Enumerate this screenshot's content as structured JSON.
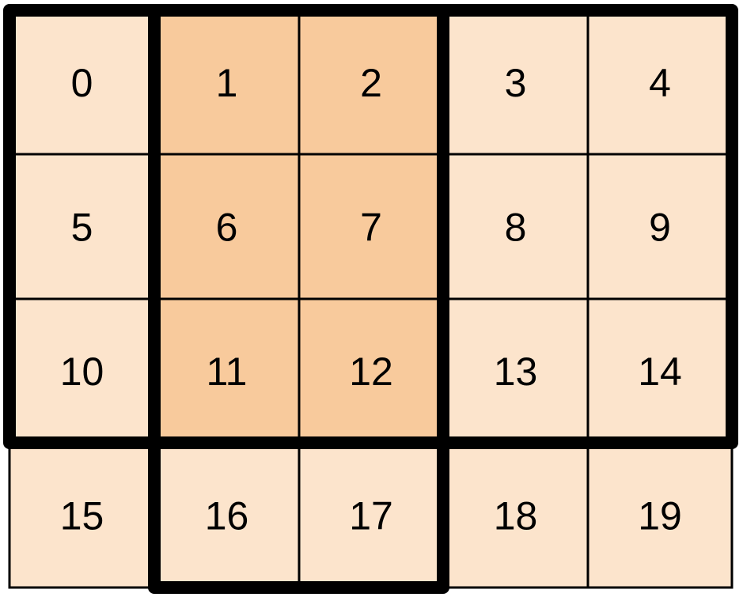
{
  "grid": {
    "rows": 4,
    "columns": 5,
    "cells": [
      "0",
      "1",
      "2",
      "3",
      "4",
      "5",
      "6",
      "7",
      "8",
      "9",
      "10",
      "11",
      "12",
      "13",
      "14",
      "15",
      "16",
      "17",
      "18",
      "19"
    ],
    "highlighted_cells": [
      1,
      2,
      6,
      7,
      11,
      12
    ],
    "bold_regions": [
      {
        "rows": [
          0,
          2
        ],
        "columns": [
          0,
          4
        ]
      },
      {
        "rows": [
          0,
          3
        ],
        "columns": [
          1,
          2
        ]
      }
    ]
  },
  "colors": {
    "cell_fill": "#FCE4CC",
    "highlight_fill": "#F8CA9C",
    "line": "#000000"
  }
}
